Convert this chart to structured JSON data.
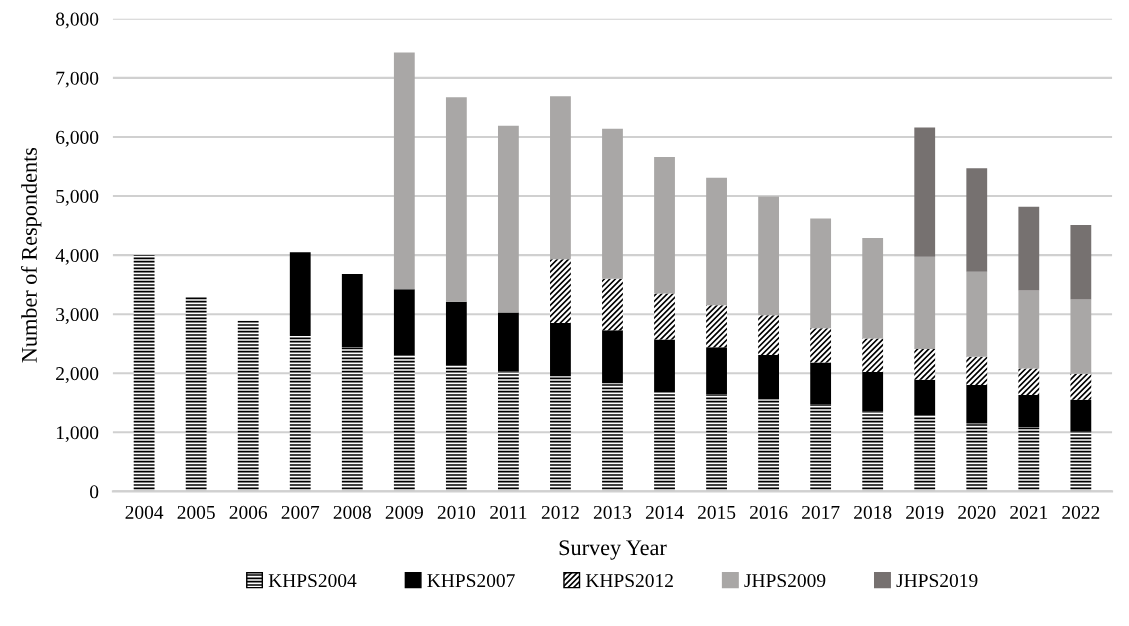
{
  "chart_data": {
    "type": "bar",
    "stacked": true,
    "xlabel": "Survey Year",
    "ylabel": "Number of Respondents",
    "categories": [
      "2004",
      "2005",
      "2006",
      "2007",
      "2008",
      "2009",
      "2010",
      "2011",
      "2012",
      "2013",
      "2014",
      "2015",
      "2016",
      "2017",
      "2018",
      "2019",
      "2020",
      "2021",
      "2022"
    ],
    "series": [
      {
        "name": "KHPS2004",
        "color": "#000000",
        "values": [
          4000,
          3300,
          2890,
          2630,
          2440,
          2300,
          2140,
          2030,
          1950,
          1830,
          1700,
          1640,
          1560,
          1480,
          1350,
          1290,
          1150,
          1090,
          1010
        ]
      },
      {
        "name": "KHPS2007",
        "color": "#000000",
        "values": [
          null,
          null,
          null,
          1420,
          1240,
          1120,
          1070,
          1000,
          900,
          900,
          870,
          800,
          750,
          700,
          670,
          600,
          650,
          540,
          540
        ]
      },
      {
        "name": "KHPS2012",
        "color": "#000000",
        "values": [
          null,
          null,
          null,
          null,
          null,
          null,
          null,
          null,
          1080,
          870,
          780,
          710,
          670,
          580,
          570,
          520,
          480,
          450,
          440
        ]
      },
      {
        "name": "JHPS2009",
        "color": "#a9a7a6",
        "values": [
          null,
          null,
          null,
          null,
          null,
          4010,
          3460,
          3160,
          2760,
          2540,
          2310,
          2160,
          2010,
          1860,
          1700,
          1560,
          1440,
          1320,
          1260
        ]
      },
      {
        "name": "JHPS2019",
        "color": "#767170",
        "values": [
          null,
          null,
          null,
          null,
          null,
          null,
          null,
          null,
          null,
          null,
          null,
          null,
          null,
          null,
          null,
          2190,
          1750,
          1420,
          1260
        ]
      }
    ],
    "ylim": [
      0,
      8000
    ],
    "yticks": [
      0,
      {
        "value": 1000,
        "label": "1,000"
      },
      {
        "value": 2000,
        "label": "2,000"
      },
      {
        "value": 3000,
        "label": "3,000"
      },
      {
        "value": 4000,
        "label": "4,000"
      },
      {
        "value": 5000,
        "label": "5,000"
      },
      {
        "value": 6000,
        "label": "6,000"
      },
      {
        "value": 7000,
        "label": "7,000"
      },
      {
        "value": 8000,
        "label": "8,000"
      }
    ],
    "grid": "y",
    "legend": "bottom"
  }
}
